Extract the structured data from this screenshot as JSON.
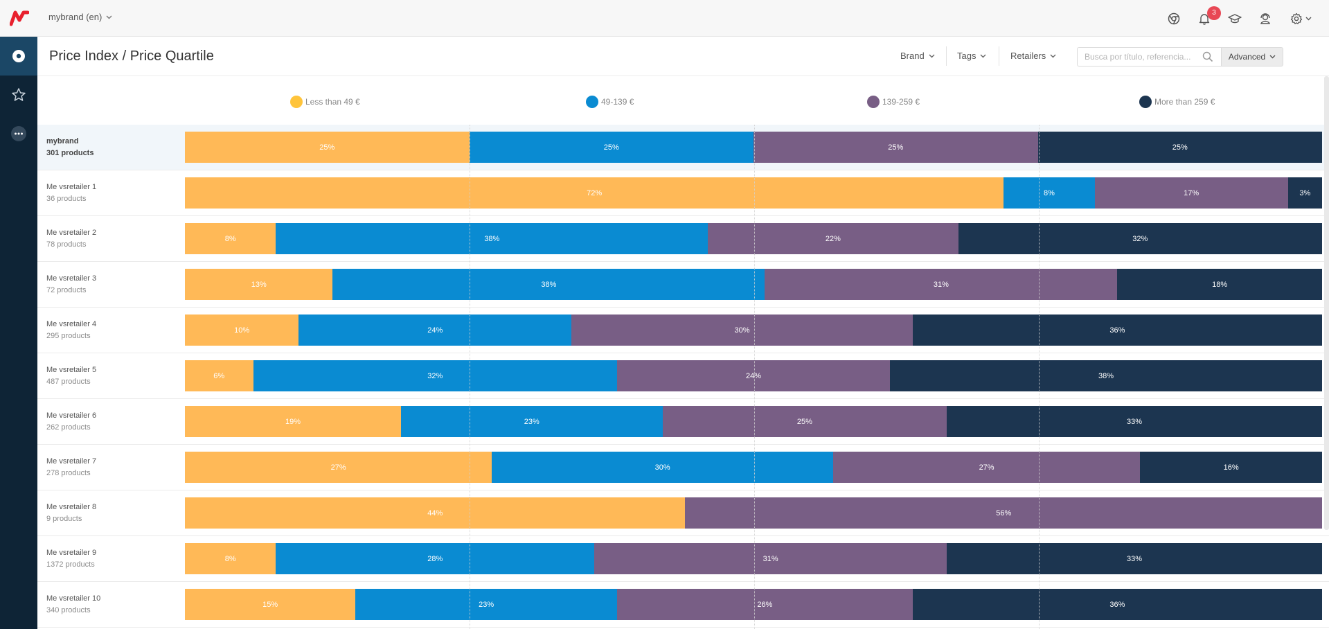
{
  "topbar": {
    "brand_selector": "mybrand (en)",
    "notification_count": "3"
  },
  "header": {
    "title": "Price Index / Price Quartile",
    "filters": {
      "brand": "Brand",
      "tags": "Tags",
      "retailers": "Retailers"
    },
    "search_placeholder": "Busca por título, referencia...",
    "advanced_label": "Advanced"
  },
  "colors": {
    "q1": "#FFB957",
    "q2": "#0A8BD2",
    "q3": "#785E85",
    "q4": "#1C3550",
    "accent": "#E8212E"
  },
  "legend": [
    {
      "label": "Less than 49 €",
      "color": "#FFC43B"
    },
    {
      "label": "49-139 €",
      "color": "#0A8BD2"
    },
    {
      "label": "139-259 €",
      "color": "#785E85"
    },
    {
      "label": "More than 259 €",
      "color": "#1C3550"
    }
  ],
  "chart_data": {
    "type": "bar",
    "stacked": true,
    "orientation": "horizontal",
    "categories": [
      "Less than 49 €",
      "49-139 €",
      "139-259 €",
      "More than 259 €"
    ],
    "rows": [
      {
        "name": "mybrand",
        "products": "301 products",
        "values": [
          25,
          25,
          25,
          25
        ],
        "labels": [
          "25%",
          "25%",
          "25%",
          "25%"
        ]
      },
      {
        "name": "Me vsretailer 1",
        "products": "36 products",
        "values": [
          72,
          8,
          17,
          3
        ],
        "labels": [
          "72%",
          "8%",
          "17%",
          "3%"
        ]
      },
      {
        "name": "Me vsretailer 2",
        "products": "78 products",
        "values": [
          8,
          38,
          22,
          32
        ],
        "labels": [
          "8%",
          "38%",
          "22%",
          "32%"
        ]
      },
      {
        "name": "Me vsretailer 3",
        "products": "72 products",
        "values": [
          13,
          38,
          31,
          18
        ],
        "labels": [
          "13%",
          "38%",
          "31%",
          "18%"
        ]
      },
      {
        "name": "Me vsretailer 4",
        "products": "295 products",
        "values": [
          10,
          24,
          30,
          36
        ],
        "labels": [
          "10%",
          "24%",
          "30%",
          "36%"
        ]
      },
      {
        "name": "Me vsretailer 5",
        "products": "487 products",
        "values": [
          6,
          32,
          24,
          38
        ],
        "labels": [
          "6%",
          "32%",
          "24%",
          "38%"
        ]
      },
      {
        "name": "Me vsretailer 6",
        "products": "262 products",
        "values": [
          19,
          23,
          25,
          33
        ],
        "labels": [
          "19%",
          "23%",
          "25%",
          "33%"
        ]
      },
      {
        "name": "Me vsretailer 7",
        "products": "278 products",
        "values": [
          27,
          30,
          27,
          16
        ],
        "labels": [
          "27%",
          "30%",
          "27%",
          "16%"
        ]
      },
      {
        "name": "Me vsretailer 8",
        "products": "9 products",
        "values": [
          44,
          0,
          56,
          0
        ],
        "labels": [
          "44%",
          "",
          "56%",
          ""
        ]
      },
      {
        "name": "Me vsretailer 9",
        "products": "1372 products",
        "values": [
          8,
          28,
          31,
          33
        ],
        "labels": [
          "8%",
          "28%",
          "31%",
          "33%"
        ]
      },
      {
        "name": "Me vsretailer 10",
        "products": "340 products",
        "values": [
          15,
          23,
          26,
          36
        ],
        "labels": [
          "15%",
          "23%",
          "26%",
          "36%"
        ]
      }
    ]
  }
}
